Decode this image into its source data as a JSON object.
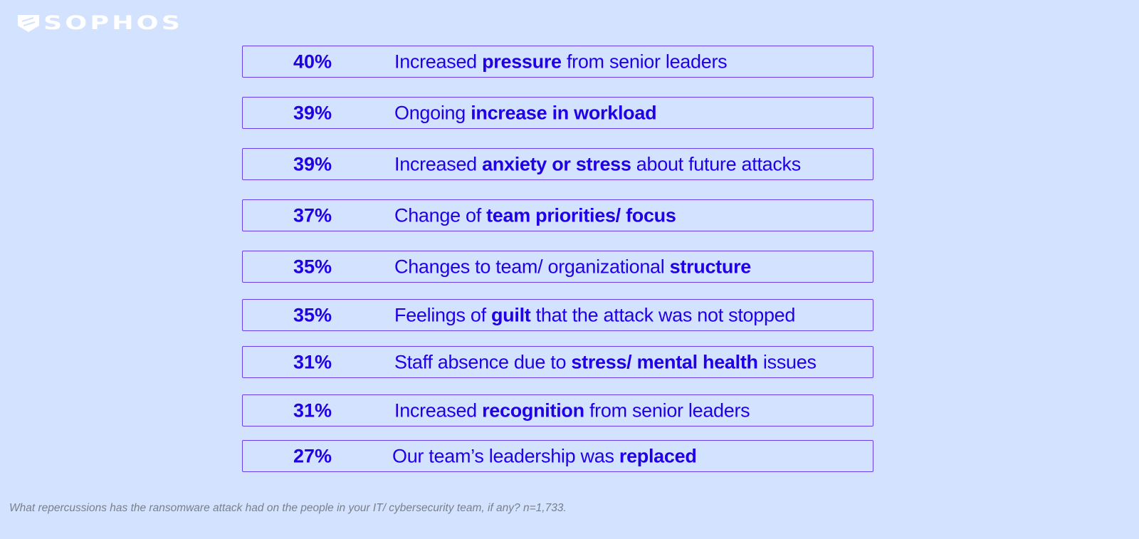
{
  "brand": {
    "name": "SOPHOS"
  },
  "colors": {
    "background": "#d3e2fe",
    "text": "#2200e6",
    "border": "#6a3ff0",
    "note": "#7a7f8a"
  },
  "chart_data": {
    "type": "table",
    "rows": [
      {
        "value": "40%",
        "pre": "Increased ",
        "bold": "pressure",
        "post": " from senior leaders"
      },
      {
        "value": "39%",
        "pre": "Ongoing ",
        "bold": "increase in workload",
        "post": ""
      },
      {
        "value": "39%",
        "pre": "Increased ",
        "bold": "anxiety or stress",
        "post": " about future attacks"
      },
      {
        "value": "37%",
        "pre": "Change of ",
        "bold": "team priorities/ focus",
        "post": ""
      },
      {
        "value": "35%",
        "pre": "Changes to team/ organizational ",
        "bold": "structure",
        "post": ""
      },
      {
        "value": "35%",
        "pre": "Feelings of ",
        "bold": "guilt",
        "post": " that the attack was not stopped"
      },
      {
        "value": "31%",
        "pre": "Staff absence due to ",
        "bold": "stress/ mental health",
        "post": " issues"
      },
      {
        "value": "31%",
        "pre": "Increased ",
        "bold": "recognition",
        "post": " from senior leaders"
      },
      {
        "value": "27%",
        "pre": "Our team’s leadership was ",
        "bold": "replaced",
        "post": ""
      }
    ]
  },
  "footnote": "What repercussions has the ransomware attack had on the people in your IT/ cybersecurity team, if any? n=1,733."
}
